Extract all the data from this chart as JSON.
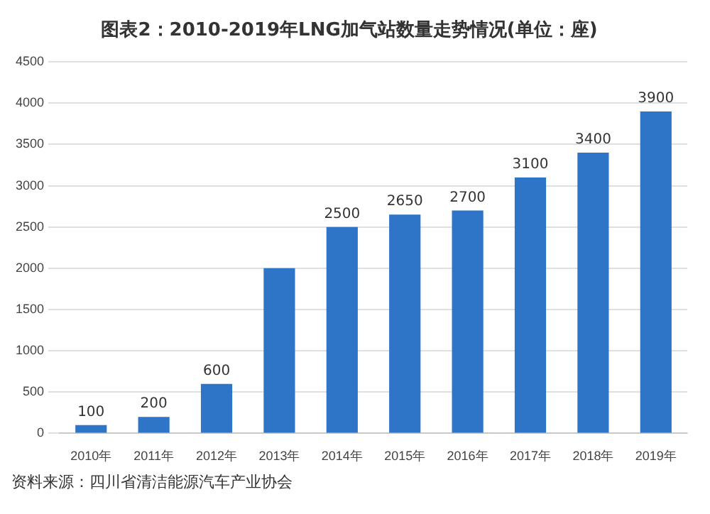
{
  "chart_data": {
    "type": "bar",
    "title": "图表2：2010-2019年LNG加气站数量走势情况(单位：座)",
    "categories": [
      "2010年",
      "2011年",
      "2012年",
      "2013年",
      "2014年",
      "2015年",
      "2016年",
      "2017年",
      "2018年",
      "2019年"
    ],
    "values": [
      100,
      200,
      600,
      2000,
      2500,
      2650,
      2700,
      3100,
      3400,
      3900
    ],
    "value_labels": [
      "100",
      "200",
      "600",
      null,
      "2500",
      "2650",
      "2700",
      "3100",
      "3400",
      "3900"
    ],
    "color": "#2e75c8",
    "ylim": [
      0,
      4500
    ],
    "yticks": [
      0,
      500,
      1000,
      1500,
      2000,
      2500,
      3000,
      3500,
      4000,
      4500
    ],
    "grid": "y",
    "legend": false,
    "annotations": [
      "资料来源：四川省清洁能源汽车产业协会"
    ]
  }
}
